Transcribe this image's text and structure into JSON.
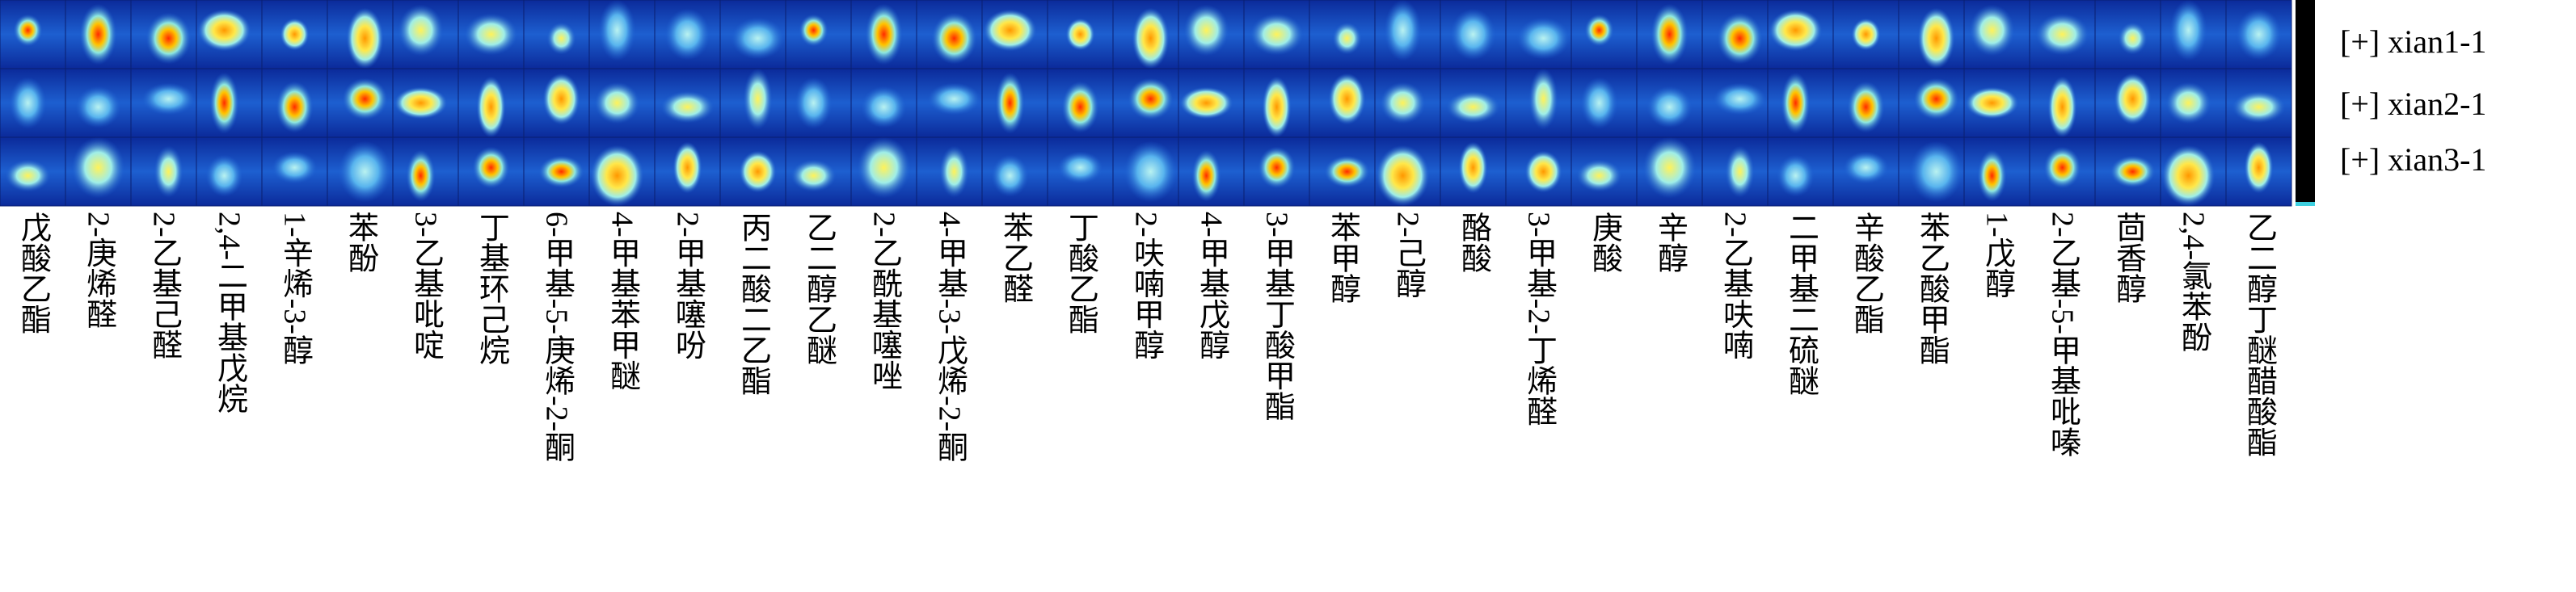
{
  "columns": [
    "戊酸乙酯",
    "2-庚烯醛",
    "2-乙基己醛",
    "2,4-二甲基戊烷",
    "1-辛烯-3-醇",
    "苯酚",
    "3-乙基吡啶",
    "丁基环己烷",
    "6-甲基-5-庚烯-2-酮",
    "4-甲基苯甲醚",
    "2-甲基噻吩",
    "丙二酸二乙酯",
    "乙二醇乙醚",
    "2-乙酰基噻唑",
    "4-甲基-3-戊烯-2-酮",
    "苯乙醛",
    "丁酸乙酯",
    "2-呋喃甲醇",
    "4-甲基戊醇",
    "3-甲基丁酸甲酯",
    "苯甲醇",
    "2-己醇",
    "酪酸",
    "3-甲基-2-丁烯醛",
    "庚酸",
    "辛醇",
    "2-乙基呋喃",
    "二甲基二硫醚",
    "辛酸乙酯",
    "苯乙酸甲酯",
    "1-戊醇",
    "2-乙基-5-甲基吡嗪",
    "茴香醇",
    "2,4-氯苯酚",
    "乙二醇丁醚醋酸酯"
  ],
  "rows": [
    "[+] xian1-1",
    "[+] xian2-1",
    "[+] xian3-1"
  ]
}
